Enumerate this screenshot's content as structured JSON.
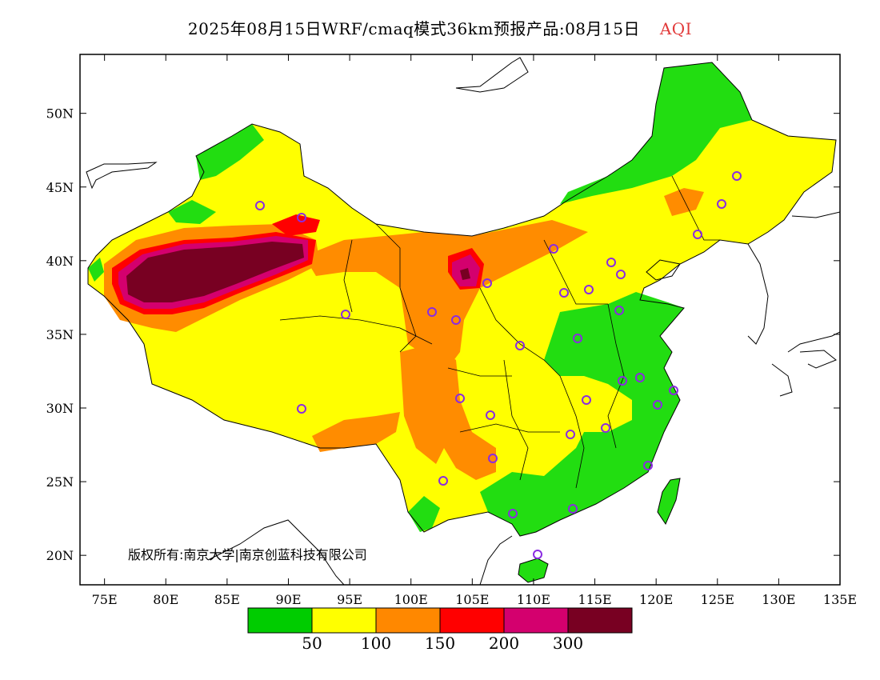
{
  "title": {
    "main": "2025年08月15日WRF/cmaq模式36km预报产品:08月15日",
    "variable": "AQI",
    "variable_color": "#e23a3a"
  },
  "copyright": "版权所有:南京大学|南京创蓝科技有限公司",
  "axes": {
    "lat_ticks": [
      "50N",
      "45N",
      "40N",
      "35N",
      "30N",
      "25N",
      "20N"
    ],
    "lon_ticks": [
      "75E",
      "80E",
      "85E",
      "90E",
      "95E",
      "100E",
      "105E",
      "110E",
      "115E",
      "120E",
      "125E",
      "130E",
      "135E"
    ],
    "lon_range": [
      73,
      135
    ],
    "lat_range": [
      18,
      54
    ]
  },
  "legend": {
    "colors": [
      "#00cc00",
      "#ffff00",
      "#ff8800",
      "#ff0000",
      "#d4006e",
      "#780022"
    ],
    "labels": [
      "50",
      "100",
      "150",
      "200",
      "300"
    ]
  },
  "palette": {
    "good": "#22dd11",
    "moderate": "#ffff00",
    "light": "#ff8c00",
    "moderate_pollution": "#ff0000",
    "heavy": "#d4006e",
    "severe": "#780022",
    "station_marker": "#8a2be2"
  }
}
